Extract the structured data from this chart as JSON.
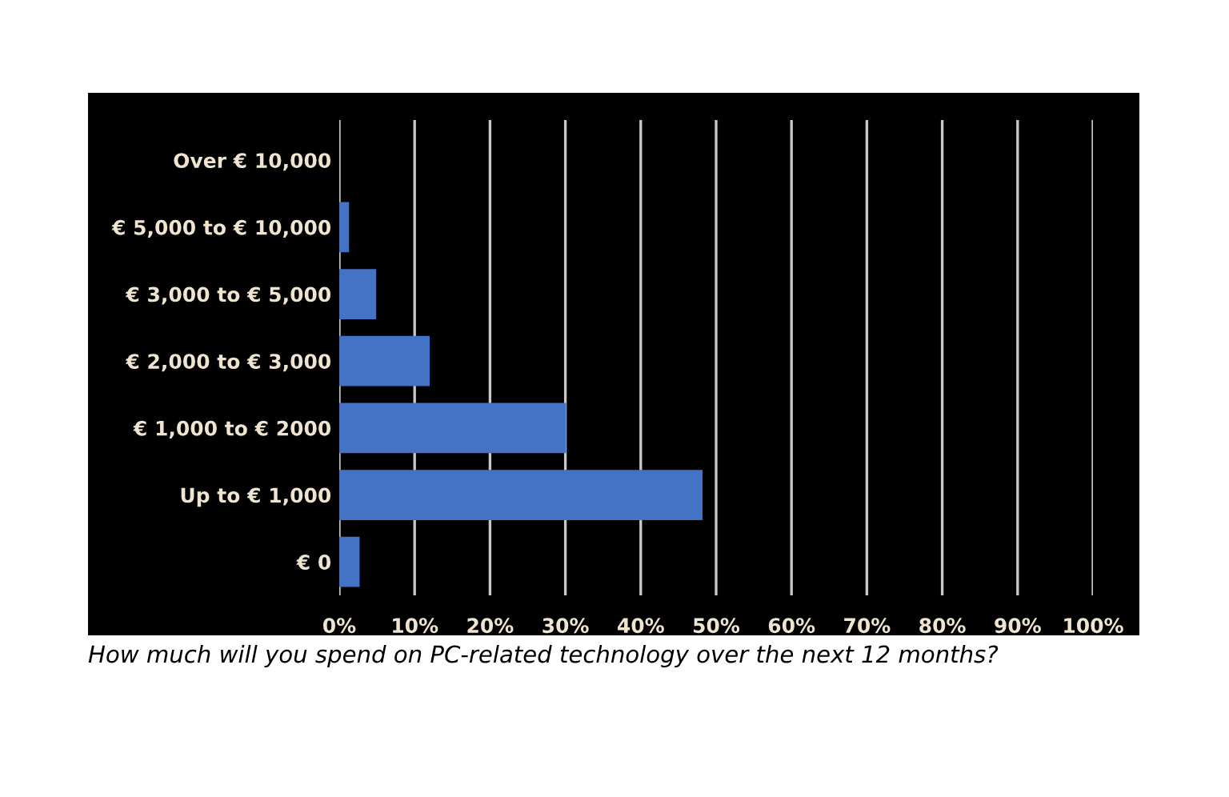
{
  "chart_data": {
    "type": "bar",
    "orientation": "horizontal",
    "categories": [
      "Over € 10,000",
      "€ 5,000 to € 10,000",
      "€ 3,000 to € 5,000",
      "€ 2,000 to € 3,000",
      "€ 1,000 to € 2000",
      "Up to € 1,000",
      "€ 0"
    ],
    "values": [
      0,
      1.3,
      4.9,
      12.0,
      30.1,
      48.2,
      2.7
    ],
    "color": "#4472c4",
    "xlim": [
      0,
      100
    ],
    "xticks": [
      {
        "value": 0,
        "label": "0%"
      },
      {
        "value": 10,
        "label": "10%"
      },
      {
        "value": 20,
        "label": "20%"
      },
      {
        "value": 30,
        "label": "30%"
      },
      {
        "value": 40,
        "label": "40%"
      },
      {
        "value": 50,
        "label": "50%"
      },
      {
        "value": 60,
        "label": "60%"
      },
      {
        "value": 70,
        "label": "70%"
      },
      {
        "value": 80,
        "label": "80%"
      },
      {
        "value": 90,
        "label": "90%"
      },
      {
        "value": 100,
        "label": "100%"
      }
    ],
    "grid": "x",
    "annotations": [
      "How much will you spend on PC-related technology over the next 12 months?"
    ]
  }
}
